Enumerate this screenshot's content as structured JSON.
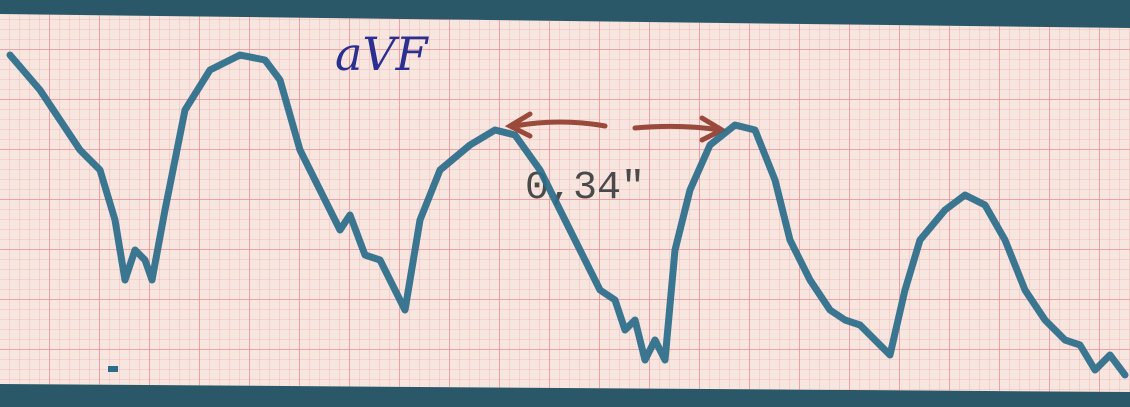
{
  "lead_label": "aVF",
  "interval_label": "0,34\""
}
